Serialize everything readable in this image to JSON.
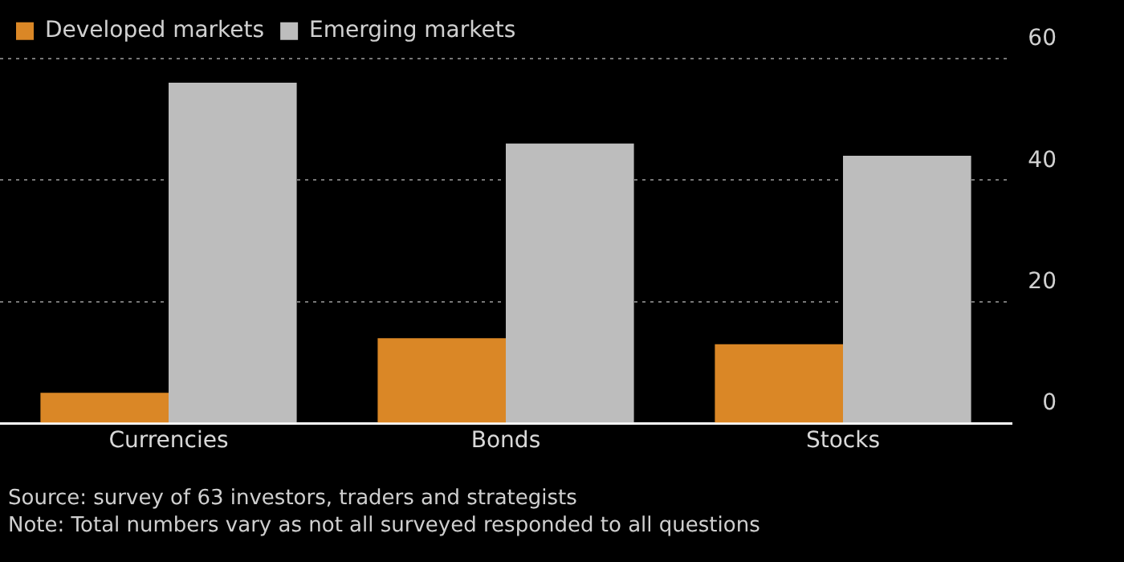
{
  "chart_data": {
    "type": "bar",
    "categories": [
      "Currencies",
      "Bonds",
      "Stocks"
    ],
    "series": [
      {
        "name": "Developed markets",
        "color": "#da8726",
        "values": [
          5,
          14,
          13
        ]
      },
      {
        "name": "Emerging markets",
        "color": "#bdbdbd",
        "values": [
          56,
          46,
          44
        ]
      }
    ],
    "ylim": [
      0,
      60
    ],
    "yticks": [
      0,
      20,
      40,
      60
    ],
    "grid": "y",
    "legend": "top left",
    "annotations": [
      "Source: survey of 63 investors, traders and strategists",
      "Note: Total numbers vary as not all surveyed responded to all questions"
    ]
  }
}
